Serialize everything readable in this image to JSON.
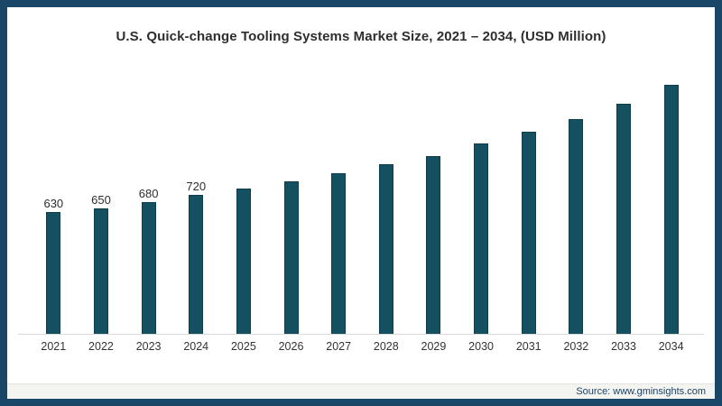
{
  "title": "U.S. Quick-change Tooling Systems Market Size, 2021 – 2034, (USD Million)",
  "source": "Source: www.gminsights.com",
  "colors": {
    "bar": "#14505f",
    "frame_border": "#1a4668",
    "axis_line": "#d9d9d9",
    "title_text": "#2e2e2e",
    "tick_text": "#333333",
    "source_text": "#1c3e5e",
    "footer_bg": "#f4f4f1",
    "background": "#ffffff"
  },
  "chart_data": {
    "type": "bar",
    "title": "U.S. Quick-change Tooling Systems Market Size, 2021 – 2034, (USD Million)",
    "xlabel": "",
    "ylabel": "",
    "categories": [
      "2021",
      "2022",
      "2023",
      "2024",
      "2025",
      "2026",
      "2027",
      "2028",
      "2029",
      "2030",
      "2031",
      "2032",
      "2033",
      "2034"
    ],
    "values": [
      630,
      650,
      680,
      720,
      750,
      790,
      830,
      875,
      920,
      985,
      1045,
      1110,
      1190,
      1290
    ],
    "data_labels": [
      "630",
      "650",
      "680",
      "720",
      "",
      "",
      "",
      "",
      "",
      "",
      "",
      "",
      "",
      ""
    ],
    "ylim": [
      0,
      1400
    ],
    "grid": false,
    "legend": false,
    "y_axis_visible": false,
    "bar_color": "#14505f"
  }
}
